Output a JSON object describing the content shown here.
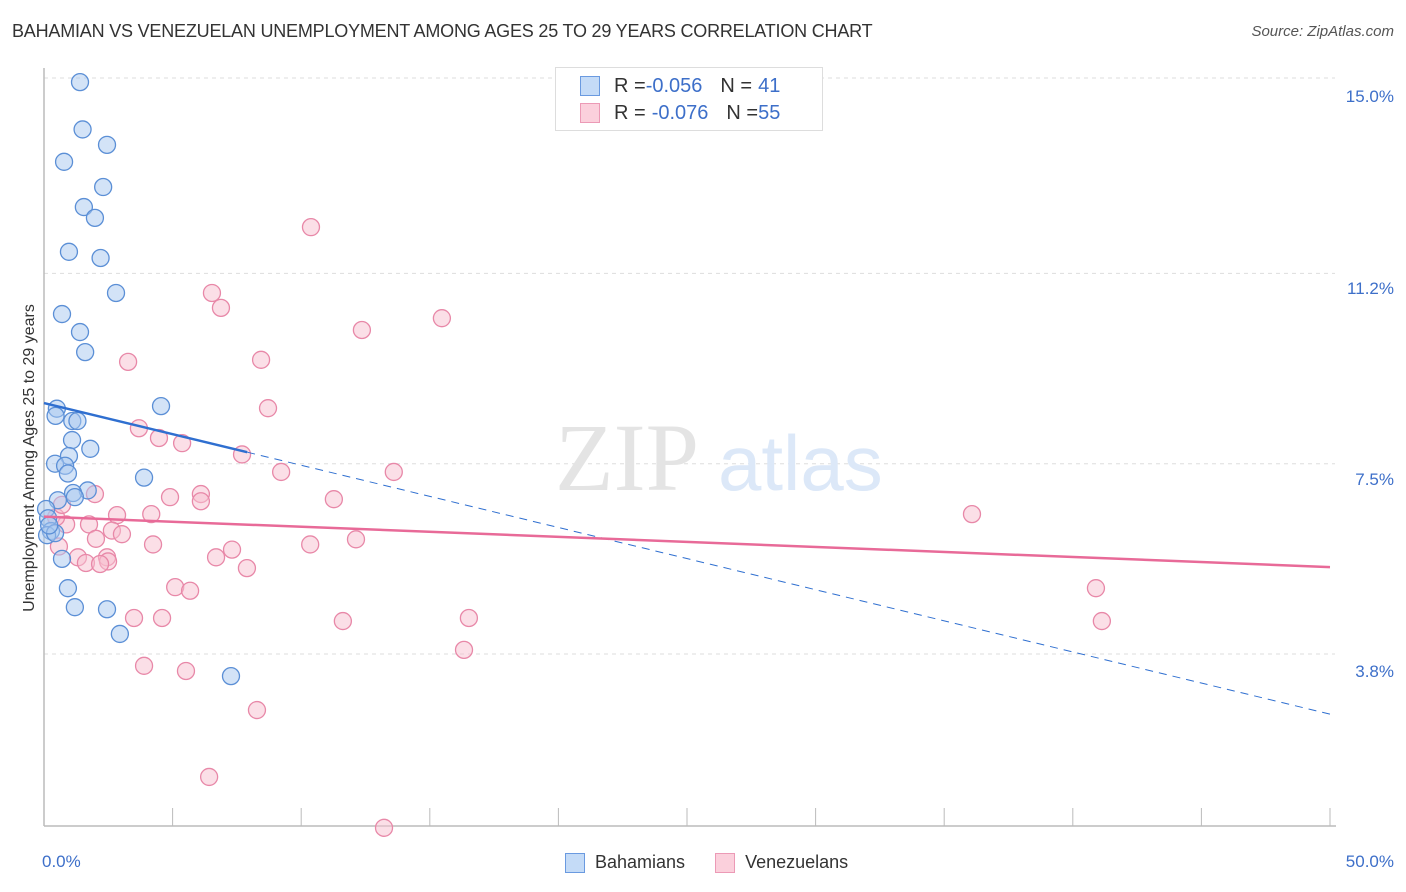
{
  "header": {
    "title": "BAHAMIAN VS VENEZUELAN UNEMPLOYMENT AMONG AGES 25 TO 29 YEARS CORRELATION CHART",
    "source": "Source: ZipAtlas.com"
  },
  "legend": {
    "rows": [
      {
        "series": "Bahamians",
        "r_label": "R = ",
        "r_value": "-0.056",
        "n_label": "N = ",
        "n_value": "41",
        "color": "#a8c8f0",
        "border": "#5b8fd6"
      },
      {
        "series": "Venezuelans",
        "r_label": "R = ",
        "r_value": "-0.076",
        "n_label": "N = ",
        "n_value": "55",
        "color": "#f8c0d0",
        "border": "#e888a8"
      }
    ]
  },
  "axes": {
    "y_label": "Unemployment Among Ages 25 to 29 years",
    "y_ticks": [
      "15.0%",
      "11.2%",
      "7.5%",
      "3.8%"
    ],
    "x_min_label": "0.0%",
    "x_max_label": "50.0%"
  },
  "bottom_legend": [
    {
      "label": "Bahamians",
      "color": "#a8c8f0",
      "border": "#5b8fd6"
    },
    {
      "label": "Venezuelans",
      "color": "#f8c0d0",
      "border": "#e888a8"
    }
  ],
  "watermark": {
    "part1": "ZIP",
    "part2": "atlas"
  },
  "colors": {
    "blue_fill": "#a8c8f0",
    "blue_stroke": "#5b8fd6",
    "blue_line": "#2f6fd0",
    "pink_fill": "#f8c0d0",
    "pink_stroke": "#e888a8",
    "pink_line": "#e86a98",
    "tick_label": "#3d6fc9"
  },
  "chart_data": {
    "type": "scatter",
    "title": "BAHAMIAN VS VENEZUELAN UNEMPLOYMENT AMONG AGES 25 TO 29 YEARS CORRELATION CHART",
    "xlabel": "",
    "ylabel": "Unemployment Among Ages 25 to 29 years",
    "xlim": [
      0,
      50
    ],
    "ylim": [
      0,
      15.5
    ],
    "x_ticks": [
      "0.0%",
      "50.0%"
    ],
    "y_ticks": [
      15.0,
      11.2,
      7.5,
      3.8
    ],
    "grid": "horizontal dashed",
    "legend_position": "top-center and bottom",
    "series": [
      {
        "name": "Bahamians",
        "R": -0.056,
        "N": 41,
        "trend": {
          "x0": 0,
          "y0": 8.68,
          "x1": 50,
          "y1": 2.63,
          "solid_until_x": 7.9
        },
        "points": [
          [
            1.4,
            14.92
          ],
          [
            1.5,
            14.0
          ],
          [
            2.45,
            13.7
          ],
          [
            0.78,
            13.37
          ],
          [
            2.3,
            12.88
          ],
          [
            1.55,
            12.49
          ],
          [
            1.98,
            12.28
          ],
          [
            0.97,
            11.62
          ],
          [
            2.2,
            11.5
          ],
          [
            2.8,
            10.82
          ],
          [
            0.7,
            10.41
          ],
          [
            1.4,
            10.06
          ],
          [
            1.6,
            9.67
          ],
          [
            4.55,
            8.62
          ],
          [
            0.5,
            8.57
          ],
          [
            0.45,
            8.43
          ],
          [
            1.1,
            8.33
          ],
          [
            1.3,
            8.33
          ],
          [
            1.09,
            7.96
          ],
          [
            1.8,
            7.79
          ],
          [
            0.97,
            7.65
          ],
          [
            0.43,
            7.5
          ],
          [
            0.82,
            7.46
          ],
          [
            0.93,
            7.31
          ],
          [
            3.89,
            7.23
          ],
          [
            1.7,
            6.98
          ],
          [
            1.13,
            6.93
          ],
          [
            1.2,
            6.85
          ],
          [
            0.54,
            6.79
          ],
          [
            0.08,
            6.62
          ],
          [
            0.16,
            6.44
          ],
          [
            0.27,
            6.19
          ],
          [
            0.12,
            6.11
          ],
          [
            0.43,
            6.15
          ],
          [
            0.7,
            5.65
          ],
          [
            0.93,
            5.08
          ],
          [
            1.2,
            4.71
          ],
          [
            2.45,
            4.67
          ],
          [
            2.95,
            4.19
          ],
          [
            7.27,
            3.37
          ],
          [
            0.2,
            6.3
          ]
        ]
      },
      {
        "name": "Venezuelans",
        "R": -0.076,
        "N": 55,
        "trend": {
          "x0": 0,
          "y0": 6.47,
          "x1": 50,
          "y1": 5.49
        },
        "points": [
          [
            10.38,
            12.1
          ],
          [
            6.53,
            10.82
          ],
          [
            6.88,
            10.53
          ],
          [
            12.36,
            10.1
          ],
          [
            15.47,
            10.33
          ],
          [
            3.27,
            9.48
          ],
          [
            8.44,
            9.52
          ],
          [
            8.71,
            8.58
          ],
          [
            3.69,
            8.19
          ],
          [
            4.47,
            8.0
          ],
          [
            5.37,
            7.9
          ],
          [
            7.7,
            7.68
          ],
          [
            9.22,
            7.34
          ],
          [
            13.6,
            7.34
          ],
          [
            4.9,
            6.85
          ],
          [
            6.1,
            6.91
          ],
          [
            1.98,
            6.91
          ],
          [
            6.1,
            6.77
          ],
          [
            11.27,
            6.81
          ],
          [
            4.17,
            6.52
          ],
          [
            2.84,
            6.5
          ],
          [
            36.08,
            6.52
          ],
          [
            0.86,
            6.32
          ],
          [
            1.75,
            6.32
          ],
          [
            0.47,
            6.46
          ],
          [
            2.64,
            6.2
          ],
          [
            3.03,
            6.13
          ],
          [
            2.02,
            6.04
          ],
          [
            4.24,
            5.93
          ],
          [
            10.35,
            5.93
          ],
          [
            12.13,
            6.03
          ],
          [
            7.31,
            5.83
          ],
          [
            6.69,
            5.68
          ],
          [
            0.58,
            5.89
          ],
          [
            1.32,
            5.68
          ],
          [
            2.45,
            5.68
          ],
          [
            2.49,
            5.6
          ],
          [
            1.63,
            5.57
          ],
          [
            2.18,
            5.55
          ],
          [
            7.89,
            5.47
          ],
          [
            5.1,
            5.1
          ],
          [
            5.68,
            5.03
          ],
          [
            40.9,
            5.08
          ],
          [
            4.59,
            4.5
          ],
          [
            3.5,
            4.5
          ],
          [
            11.62,
            4.44
          ],
          [
            16.52,
            4.5
          ],
          [
            41.13,
            4.44
          ],
          [
            16.33,
            3.88
          ],
          [
            3.89,
            3.57
          ],
          [
            5.52,
            3.47
          ],
          [
            8.28,
            2.71
          ],
          [
            6.42,
            1.41
          ],
          [
            13.22,
            0.42
          ],
          [
            0.7,
            6.7
          ]
        ]
      }
    ]
  }
}
